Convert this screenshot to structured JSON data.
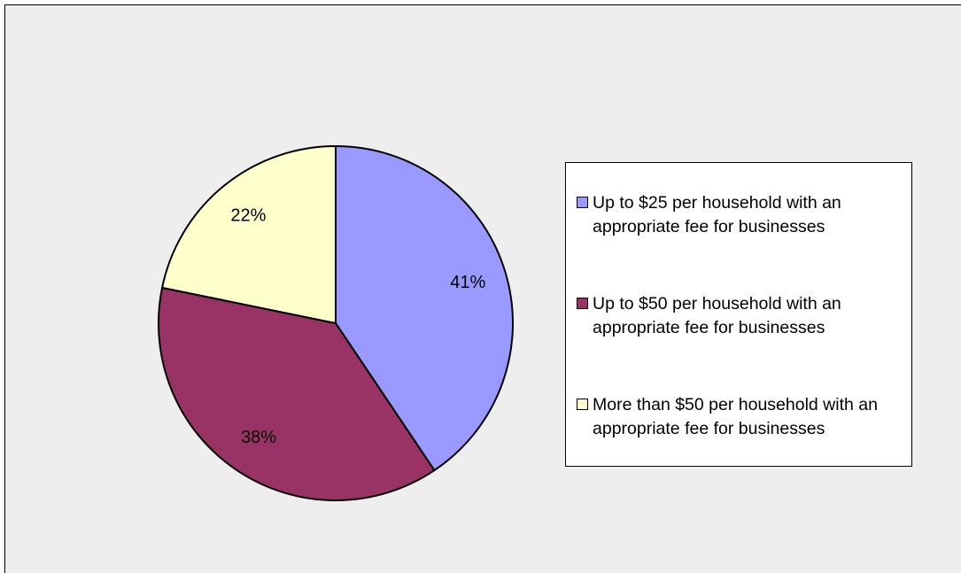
{
  "chart_data": {
    "type": "pie",
    "categories": [
      "Up to $25 per household with an appropriate fee for businesses",
      "Up to $50 per household with an appropriate fee for businesses",
      "More than $50 per household with an appropriate fee for businesses"
    ],
    "values": [
      41,
      38,
      22
    ],
    "value_labels": [
      "41%",
      "38%",
      "22%"
    ],
    "colors": [
      "#9999ff",
      "#993366",
      "#ffffcc"
    ],
    "legend": "right"
  }
}
